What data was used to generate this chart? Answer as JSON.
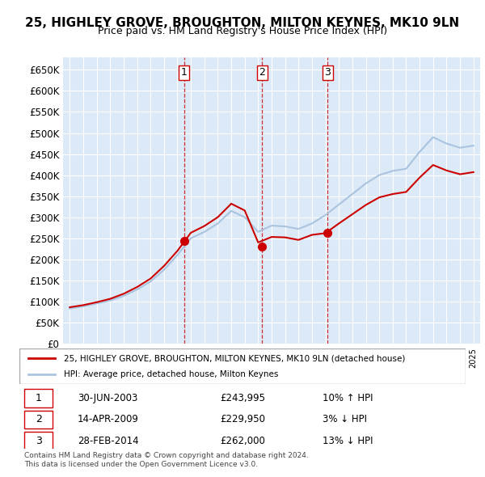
{
  "title": "25, HIGHLEY GROVE, BROUGHTON, MILTON KEYNES, MK10 9LN",
  "subtitle": "Price paid vs. HM Land Registry's House Price Index (HPI)",
  "ylim": [
    0,
    680000
  ],
  "yticks": [
    0,
    50000,
    100000,
    150000,
    200000,
    250000,
    300000,
    350000,
    400000,
    450000,
    500000,
    550000,
    600000,
    650000
  ],
  "background_color": "#dce9f7",
  "plot_bg": "#dce9f7",
  "legend_entry1": "25, HIGHLEY GROVE, BROUGHTON, MILTON KEYNES, MK10 9LN (detached house)",
  "legend_entry2": "HPI: Average price, detached house, Milton Keynes",
  "transactions": [
    {
      "num": 1,
      "date": "30-JUN-2003",
      "price": 243995,
      "pct": "10%",
      "dir": "↑"
    },
    {
      "num": 2,
      "date": "14-APR-2009",
      "price": 229950,
      "pct": "3%",
      "dir": "↓"
    },
    {
      "num": 3,
      "date": "28-FEB-2014",
      "price": 262000,
      "pct": "13%",
      "dir": "↓"
    }
  ],
  "transaction_years": [
    2003.5,
    2009.29,
    2014.17
  ],
  "transaction_prices": [
    243995,
    229950,
    262000
  ],
  "footer": "Contains HM Land Registry data © Crown copyright and database right 2024.\nThis data is licensed under the Open Government Licence v3.0.",
  "hpi_color": "#aac4e0",
  "property_color": "#cc0000",
  "vline_color": "#cc0000",
  "marker_color": "#cc0000"
}
